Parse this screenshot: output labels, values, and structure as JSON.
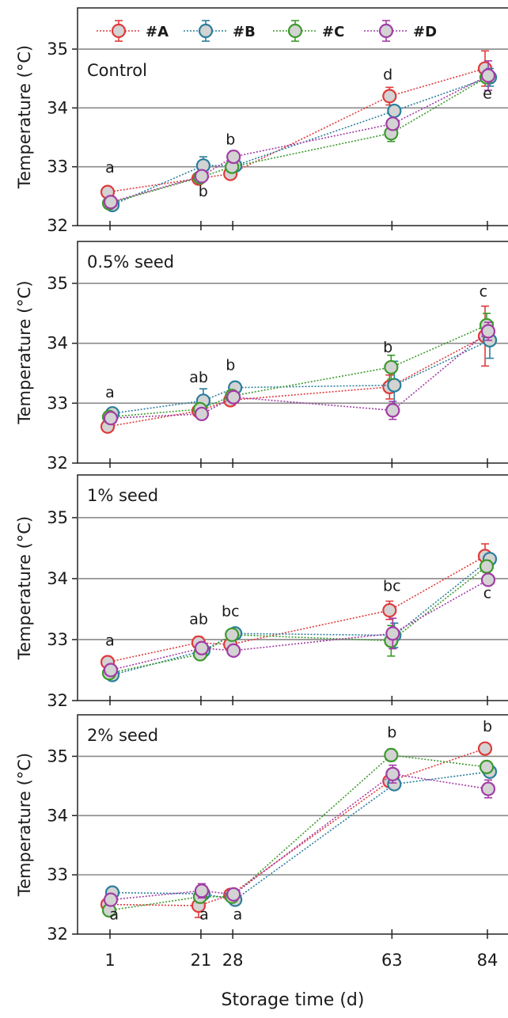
{
  "chart_data": {
    "type": "line",
    "xlabel": "Storage time (d)",
    "x_ticks": [
      1,
      21,
      28,
      63,
      84
    ],
    "x_tick_labels": [
      "1",
      "21",
      "28",
      "63",
      "84"
    ],
    "series_names": [
      "#A",
      "#B",
      "#C",
      "#D"
    ],
    "colors": {
      "#A": "#e03a3a",
      "#B": "#2a7e9c",
      "#C": "#3c9a2c",
      "#D": "#a23ca6"
    },
    "panels": [
      {
        "title": "Control",
        "ylabel": "Temperature (°C)",
        "ylim": [
          32,
          35.7
        ],
        "yticks": [
          32,
          33,
          34,
          35
        ],
        "series": [
          {
            "name": "#A",
            "x": [
              1,
              21,
              28,
              63,
              84
            ],
            "y": [
              32.57,
              32.8,
              32.88,
              34.2,
              34.67
            ],
            "err": [
              0.07,
              0.05,
              0.05,
              0.15,
              0.3
            ]
          },
          {
            "name": "#B",
            "x": [
              1,
              21,
              28,
              63,
              84
            ],
            "y": [
              32.35,
              33.02,
              33.02,
              33.95,
              34.52
            ],
            "err": [
              0.05,
              0.15,
              0.05,
              0.07,
              0.15
            ]
          },
          {
            "name": "#C",
            "x": [
              1,
              21,
              28,
              63,
              84
            ],
            "y": [
              32.38,
              32.82,
              33.0,
              33.57,
              34.52
            ],
            "err": [
              0.08,
              0.08,
              0.05,
              0.14,
              0.08
            ]
          },
          {
            "name": "#D",
            "x": [
              1,
              21,
              28,
              63,
              84
            ],
            "y": [
              32.4,
              32.84,
              33.17,
              33.73,
              34.55
            ],
            "err": [
              0.05,
              0.05,
              0.1,
              0.07,
              0.25
            ]
          }
        ],
        "annotations": [
          {
            "x": 1,
            "y": 32.9,
            "text": "a"
          },
          {
            "x": 21,
            "y": 32.5,
            "text": "b",
            "dx": 0.5
          },
          {
            "x": 28,
            "y": 33.38,
            "text": "b",
            "dx": -0.5
          },
          {
            "x": 63,
            "y": 34.48,
            "text": "d",
            "dx": -0.9
          },
          {
            "x": 84,
            "y": 34.16,
            "text": "e"
          }
        ]
      },
      {
        "title": "0.5% seed",
        "ylabel": "Temperature (°C)",
        "ylim": [
          32,
          35.7
        ],
        "yticks": [
          32,
          33,
          34,
          35
        ],
        "series": [
          {
            "name": "#A",
            "x": [
              1,
              21,
              28,
              63,
              84
            ],
            "y": [
              32.61,
              32.87,
              33.05,
              33.27,
              34.12
            ],
            "err": [
              0.06,
              0.08,
              0.06,
              0.2,
              0.5
            ]
          },
          {
            "name": "#B",
            "x": [
              1,
              21,
              28,
              63,
              84
            ],
            "y": [
              32.83,
              33.04,
              33.26,
              33.3,
              34.05
            ],
            "err": [
              0.05,
              0.2,
              0.07,
              0.4,
              0.3
            ]
          },
          {
            "name": "#C",
            "x": [
              1,
              21,
              28,
              63,
              84
            ],
            "y": [
              32.77,
              32.9,
              33.12,
              33.6,
              34.3
            ],
            "err": [
              0.05,
              0.05,
              0.05,
              0.2,
              0.2
            ]
          },
          {
            "name": "#D",
            "x": [
              1,
              21,
              28,
              63,
              84
            ],
            "y": [
              32.75,
              32.82,
              33.1,
              32.88,
              34.2
            ],
            "err": [
              0.05,
              0.05,
              0.05,
              0.15,
              0.15
            ]
          }
        ],
        "annotations": [
          {
            "x": 1,
            "y": 33.1,
            "text": "a"
          },
          {
            "x": 21,
            "y": 33.35,
            "text": "ab",
            "dx": -0.5
          },
          {
            "x": 28,
            "y": 33.55,
            "text": "b",
            "dx": -0.5
          },
          {
            "x": 63,
            "y": 33.85,
            "text": "b",
            "dx": -0.9
          },
          {
            "x": 84,
            "y": 34.78,
            "text": "c",
            "dx": -0.9
          }
        ]
      },
      {
        "title": "1% seed",
        "ylabel": "Temperature (°C)",
        "ylim": [
          32,
          35.7
        ],
        "yticks": [
          32,
          33,
          34,
          35
        ],
        "series": [
          {
            "name": "#A",
            "x": [
              1,
              21,
              28,
              63,
              84
            ],
            "y": [
              32.63,
              32.95,
              32.92,
              33.48,
              34.37
            ],
            "err": [
              0.07,
              0.1,
              0.05,
              0.15,
              0.2
            ]
          },
          {
            "name": "#B",
            "x": [
              1,
              21,
              28,
              63,
              84
            ],
            "y": [
              32.42,
              32.82,
              33.1,
              33.07,
              34.32
            ],
            "err": [
              0.05,
              0.06,
              0.06,
              0.2,
              0.05
            ]
          },
          {
            "name": "#C",
            "x": [
              1,
              21,
              28,
              63,
              84
            ],
            "y": [
              32.45,
              32.76,
              33.08,
              32.98,
              34.2
            ],
            "err": [
              0.05,
              0.05,
              0.05,
              0.25,
              0.1
            ]
          },
          {
            "name": "#D",
            "x": [
              1,
              21,
              28,
              63,
              84
            ],
            "y": [
              32.5,
              32.86,
              32.82,
              33.1,
              33.98
            ],
            "err": [
              0.05,
              0.05,
              0.05,
              0.25,
              0.05
            ]
          }
        ],
        "annotations": [
          {
            "x": 1,
            "y": 32.9,
            "text": "a"
          },
          {
            "x": 21,
            "y": 33.25,
            "text": "ab",
            "dx": -0.5
          },
          {
            "x": 28,
            "y": 33.38,
            "text": "bc",
            "dx": -0.5
          },
          {
            "x": 63,
            "y": 33.8,
            "text": "bc"
          },
          {
            "x": 84,
            "y": 33.68,
            "text": "c"
          }
        ]
      },
      {
        "title": "2% seed",
        "ylabel": "Temperature (°C)",
        "ylim": [
          32,
          35.7
        ],
        "yticks": [
          32,
          33,
          34,
          35
        ],
        "series": [
          {
            "name": "#A",
            "x": [
              1,
              21,
              28,
              63,
              84
            ],
            "y": [
              32.5,
              32.48,
              32.66,
              34.58,
              35.13
            ],
            "err": [
              0.07,
              0.2,
              0.07,
              0.07,
              0.08
            ]
          },
          {
            "name": "#B",
            "x": [
              1,
              21,
              28,
              63,
              84
            ],
            "y": [
              32.7,
              32.68,
              32.58,
              34.53,
              34.74
            ],
            "err": [
              0.05,
              0.07,
              0.05,
              0.07,
              0.08
            ]
          },
          {
            "name": "#C",
            "x": [
              1,
              21,
              28,
              63,
              84
            ],
            "y": [
              32.4,
              32.63,
              32.63,
              35.02,
              34.82
            ],
            "err": [
              0.05,
              0.1,
              0.05,
              0.1,
              0.05
            ]
          },
          {
            "name": "#D",
            "x": [
              1,
              21,
              28,
              63,
              84
            ],
            "y": [
              32.58,
              32.73,
              32.67,
              34.7,
              34.45
            ],
            "err": [
              0.05,
              0.12,
              0.05,
              0.15,
              0.15
            ]
          }
        ],
        "annotations": [
          {
            "x": 1,
            "y": 32.25,
            "text": "a",
            "dx": 0.9
          },
          {
            "x": 21,
            "y": 32.25,
            "text": "a",
            "dx": 0.7
          },
          {
            "x": 28,
            "y": 32.25,
            "text": "a",
            "dx": 1.1
          },
          {
            "x": 63,
            "y": 35.32,
            "text": "b"
          },
          {
            "x": 84,
            "y": 35.42,
            "text": "b"
          }
        ]
      }
    ]
  }
}
